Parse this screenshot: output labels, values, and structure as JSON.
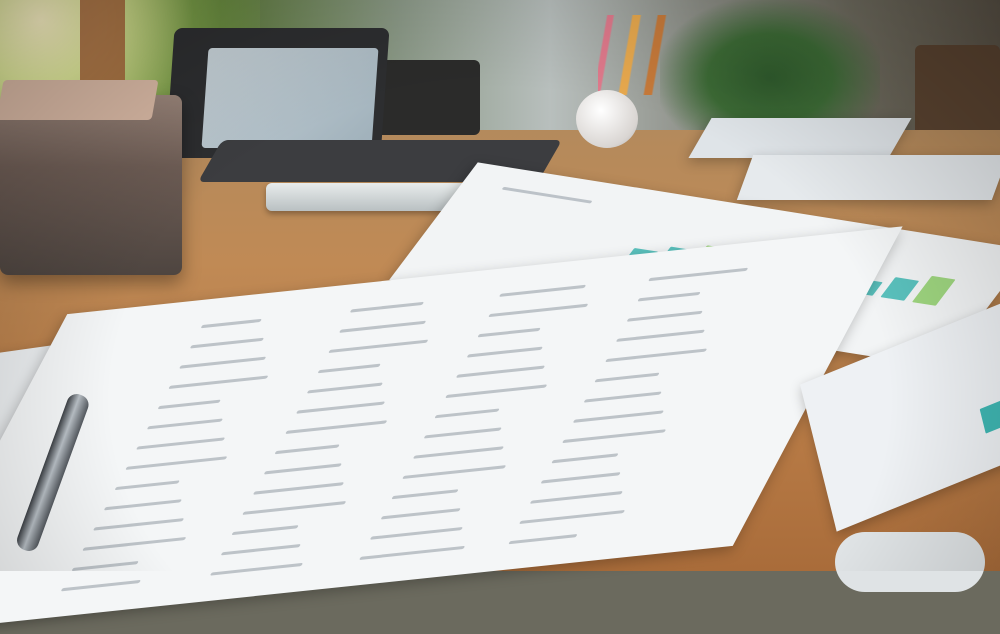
{
  "scene": {
    "description_tags": [
      "desk",
      "printed reports",
      "pen",
      "laptop",
      "printer",
      "plant"
    ],
    "colors": {
      "table_wood": "#b77a45",
      "paper": "#f2f4f5",
      "chart_teal": "#3fb7b3",
      "chart_green": "#8fcf6a",
      "chart_yellow": "#e8c64a",
      "chart_pink": "#ef8a98"
    },
    "chart_bars": [
      {
        "color": "#3fb7b3"
      },
      {
        "color": "#3fb7b3"
      },
      {
        "color": "#8fcf6a"
      },
      {
        "color": "#e8c64a"
      },
      {
        "color": "#e8c64a"
      },
      {
        "color": "#3fb7b3"
      },
      {
        "color": "#8fcf6a"
      },
      {
        "color": "#3fb7b3"
      },
      {
        "color": "#3fb7b3"
      },
      {
        "color": "#8fcf6a"
      }
    ]
  }
}
